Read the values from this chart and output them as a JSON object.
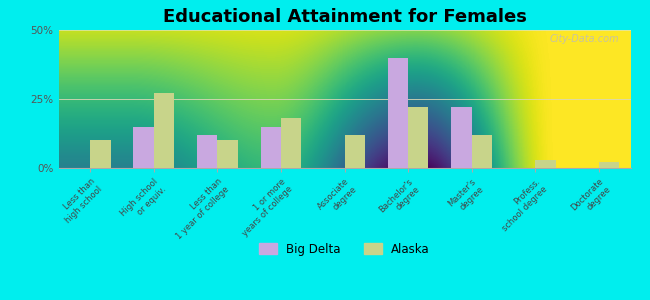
{
  "title": "Educational Attainment for Females",
  "categories": [
    "Less than\nhigh school",
    "High school\nor equiv.",
    "Less than\n1 year of college",
    "1 or more\nyears of college",
    "Associate\ndegree",
    "Bachelor's\ndegree",
    "Master's\ndegree",
    "Profess.\nschool degree",
    "Doctorate\ndegree"
  ],
  "big_delta": [
    0.0,
    15.0,
    12.0,
    15.0,
    0.0,
    40.0,
    22.0,
    0.0,
    0.0
  ],
  "alaska": [
    10.0,
    27.0,
    10.0,
    18.0,
    12.0,
    22.0,
    12.0,
    3.0,
    2.0
  ],
  "big_delta_color": "#c9a8e0",
  "alaska_color": "#c8d48a",
  "bg_outer": "#00eeee",
  "bg_plot_top": "#f8faf0",
  "bg_plot_bottom": "#d8e8b0",
  "title_fontsize": 13,
  "legend_labels": [
    "Big Delta",
    "Alaska"
  ],
  "ylim": [
    0,
    50
  ],
  "yticks": [
    0,
    25,
    50
  ],
  "ytick_labels": [
    "0%",
    "25%",
    "50%"
  ],
  "bar_width": 0.32,
  "grid_color": "#dde8c0",
  "watermark": "City-Data.com"
}
